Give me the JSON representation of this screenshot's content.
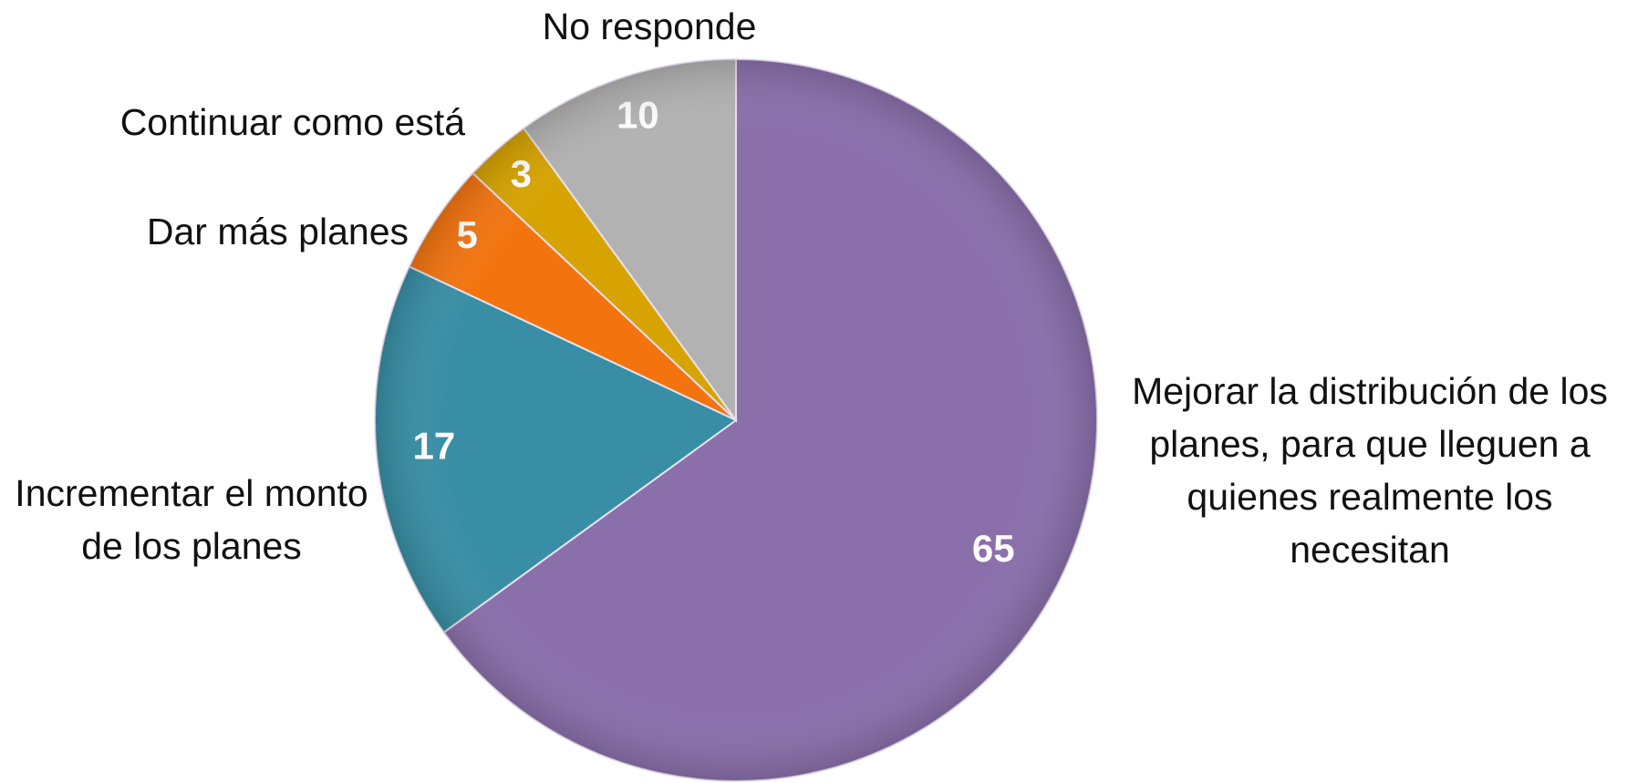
{
  "chart_data": {
    "type": "pie",
    "categories": [
      "Mejorar la distribución de los planes, para que lleguen a quienes realmente los necesitan",
      "Incrementar el monto de los planes",
      "Dar más planes",
      "Continuar como está",
      "No responde"
    ],
    "values": [
      65,
      17,
      5,
      3,
      10
    ],
    "colors": [
      "#8a6fab",
      "#388ea5",
      "#f3740f",
      "#d6a300",
      "#b2b2b2"
    ]
  }
}
